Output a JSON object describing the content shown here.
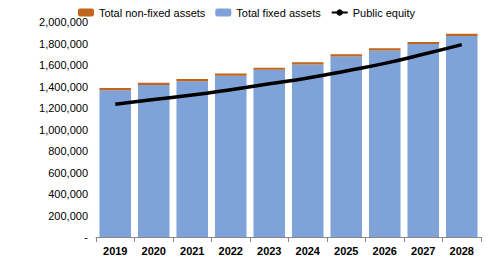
{
  "chart_data": {
    "type": "bar",
    "stacked": true,
    "categories": [
      "2019",
      "2020",
      "2021",
      "2022",
      "2023",
      "2024",
      "2025",
      "2026",
      "2027",
      "2028"
    ],
    "series": [
      {
        "name": "Total non-fixed assets",
        "type": "bar",
        "color": "#c0651b",
        "values": [
          20000,
          20000,
          20000,
          20000,
          20000,
          20000,
          20000,
          20000,
          20000,
          20000
        ]
      },
      {
        "name": "Total fixed assets",
        "type": "bar",
        "color": "#7fa3d9",
        "values": [
          1365000,
          1415000,
          1450000,
          1500000,
          1555000,
          1605000,
          1680000,
          1735000,
          1795000,
          1870000
        ]
      },
      {
        "name": "Public equity",
        "type": "line",
        "color": "#000000",
        "values": [
          1235000,
          1280000,
          1320000,
          1370000,
          1425000,
          1480000,
          1545000,
          1615000,
          1700000,
          1790000
        ]
      }
    ],
    "ylim": [
      0,
      2000000
    ],
    "yticks": [
      {
        "value": 0,
        "label": "-"
      },
      {
        "value": 200000,
        "label": "200,000"
      },
      {
        "value": 400000,
        "label": "400,000"
      },
      {
        "value": 600000,
        "label": "600,000"
      },
      {
        "value": 800000,
        "label": "800,000"
      },
      {
        "value": 1000000,
        "label": "1,000,000"
      },
      {
        "value": 1200000,
        "label": "1,200,000"
      },
      {
        "value": 1400000,
        "label": "1,400,000"
      },
      {
        "value": 1600000,
        "label": "1,600,000"
      },
      {
        "value": 1800000,
        "label": "1,800,000"
      },
      {
        "value": 2000000,
        "label": "2,000,000"
      }
    ],
    "grid": false,
    "legend": "top"
  }
}
